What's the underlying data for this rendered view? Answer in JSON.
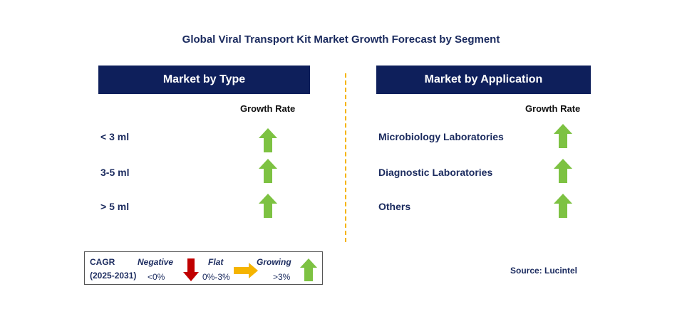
{
  "title": "Global Viral Transport Kit Market Growth Forecast by Segment",
  "left_panel": {
    "header": "Market by Type",
    "growth_header": "Growth Rate",
    "rows": [
      {
        "label": "< 3 ml",
        "trend": "growing"
      },
      {
        "label": "3-5 ml",
        "trend": "growing"
      },
      {
        "label": "> 5 ml",
        "trend": "growing"
      }
    ]
  },
  "right_panel": {
    "header": "Market by Application",
    "growth_header": "Growth Rate",
    "rows": [
      {
        "label": "Microbiology Laboratories",
        "trend": "growing"
      },
      {
        "label": "Diagnostic Laboratories",
        "trend": "growing"
      },
      {
        "label": "Others",
        "trend": "growing"
      }
    ]
  },
  "legend": {
    "cagr_label": "CAGR",
    "period": "(2025-2031)",
    "negative_label": "Negative",
    "negative_range": "<0%",
    "flat_label": "Flat",
    "flat_range": "0%-3%",
    "growing_label": "Growing",
    "growing_range": ">3%"
  },
  "source": "Source: Lucintel",
  "colors": {
    "header_bg": "#0e1f5b",
    "up_arrow": "#7dc242",
    "down_arrow": "#c00000",
    "flat_arrow": "#f5b400",
    "divider": "#f5b400"
  }
}
